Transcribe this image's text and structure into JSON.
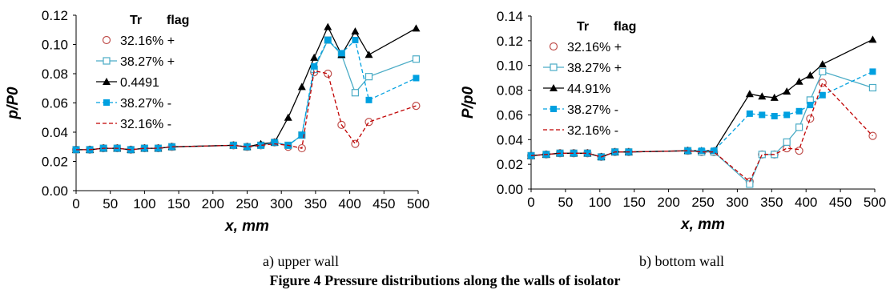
{
  "captions": {
    "panel_a": "a) upper wall",
    "panel_b": "b) bottom wall",
    "figure": "Figure 4 Pressure distributions along the walls of isolator"
  },
  "chart_data": [
    {
      "type": "line",
      "xlabel": "x, mm",
      "ylabel": "p/P0",
      "xlim": [
        0,
        500
      ],
      "ylim": [
        0,
        0.12
      ],
      "xticks": [
        0,
        50,
        100,
        150,
        200,
        250,
        300,
        350,
        400,
        450,
        500
      ],
      "yticks": [
        "0.00",
        "0.02",
        "0.04",
        "0.06",
        "0.08",
        "0.10",
        "0.12"
      ],
      "grid": false,
      "legend": {
        "position": "top-left",
        "header": [
          "Tr",
          "flag"
        ]
      },
      "series": [
        {
          "name": "32.16% +",
          "color": "#c0504d",
          "marker": "circle-open",
          "line": "none",
          "x": [
            0,
            20,
            40,
            60,
            80,
            100,
            120,
            140,
            230,
            250,
            270,
            290,
            310,
            330,
            348,
            368,
            388,
            408,
            428,
            497
          ],
          "y": [
            0.028,
            0.028,
            0.029,
            0.029,
            0.028,
            0.029,
            0.029,
            0.03,
            0.031,
            0.03,
            0.031,
            0.033,
            0.03,
            0.029,
            0.081,
            0.08,
            0.045,
            0.032,
            0.047,
            0.058
          ]
        },
        {
          "name": "38.27% +",
          "color": "#4bacc6",
          "marker": "square-open",
          "line": "solid",
          "x": [
            0,
            20,
            40,
            60,
            80,
            100,
            120,
            140,
            230,
            250,
            270,
            290,
            310,
            330,
            348,
            368,
            388,
            408,
            428,
            497
          ],
          "y": [
            0.028,
            0.028,
            0.029,
            0.029,
            0.028,
            0.029,
            0.029,
            0.03,
            0.031,
            0.03,
            0.031,
            0.033,
            0.031,
            0.038,
            0.083,
            0.103,
            0.093,
            0.067,
            0.078,
            0.09
          ]
        },
        {
          "name": "0.4491",
          "color": "#000000",
          "marker": "triangle-filled",
          "line": "solid",
          "x": [
            0,
            20,
            40,
            60,
            80,
            100,
            120,
            140,
            230,
            250,
            270,
            290,
            310,
            330,
            348,
            368,
            388,
            408,
            428,
            497
          ],
          "y": [
            0.028,
            0.028,
            0.029,
            0.029,
            0.028,
            0.029,
            0.029,
            0.03,
            0.031,
            0.03,
            0.032,
            0.033,
            0.05,
            0.071,
            0.091,
            0.112,
            0.093,
            0.109,
            0.093,
            0.111
          ]
        },
        {
          "name": "38.27% -",
          "color": "#00a0e0",
          "marker": "square-filled",
          "line": "dashed",
          "x": [
            0,
            20,
            40,
            60,
            80,
            100,
            120,
            140,
            230,
            250,
            270,
            290,
            310,
            330,
            348,
            368,
            388,
            408,
            428,
            497
          ],
          "y": [
            0.028,
            0.028,
            0.029,
            0.029,
            0.028,
            0.029,
            0.029,
            0.03,
            0.031,
            0.03,
            0.031,
            0.033,
            0.031,
            0.038,
            0.085,
            0.103,
            0.094,
            0.103,
            0.062,
            0.077
          ]
        },
        {
          "name": "32.16% -",
          "color": "#c00000",
          "marker": "none",
          "line": "dashed",
          "x": [
            0,
            20,
            40,
            60,
            80,
            100,
            120,
            140,
            230,
            250,
            270,
            290,
            310,
            330,
            348,
            368,
            388,
            408,
            428,
            497
          ],
          "y": [
            0.028,
            0.028,
            0.029,
            0.029,
            0.028,
            0.029,
            0.029,
            0.03,
            0.031,
            0.03,
            0.031,
            0.032,
            0.031,
            0.029,
            0.082,
            0.08,
            0.045,
            0.032,
            0.047,
            0.058
          ]
        }
      ]
    },
    {
      "type": "line",
      "xlabel": "x, mm",
      "ylabel": "P/p0",
      "xlim": [
        0,
        500
      ],
      "ylim": [
        0,
        0.14
      ],
      "xticks": [
        0,
        50,
        100,
        150,
        200,
        250,
        300,
        350,
        400,
        450,
        500
      ],
      "yticks": [
        "0.00",
        "0.02",
        "0.04",
        "0.06",
        "0.08",
        "0.10",
        "0.12",
        "0.14"
      ],
      "grid": false,
      "legend": {
        "position": "top-left",
        "header": [
          "Tr",
          "flag"
        ]
      },
      "series": [
        {
          "name": "32.16% +",
          "color": "#c0504d",
          "marker": "circle-open",
          "line": "none",
          "x": [
            0,
            22,
            42,
            62,
            82,
            102,
            122,
            142,
            228,
            248,
            266,
            318,
            336,
            354,
            372,
            390,
            406,
            424,
            497
          ],
          "y": [
            0.027,
            0.028,
            0.029,
            0.029,
            0.029,
            0.026,
            0.03,
            0.03,
            0.031,
            0.03,
            0.03,
            0.006,
            0.028,
            0.028,
            0.033,
            0.031,
            0.057,
            0.086,
            0.043
          ]
        },
        {
          "name": "38.27% +",
          "color": "#4bacc6",
          "marker": "square-open",
          "line": "solid",
          "x": [
            0,
            22,
            42,
            62,
            82,
            102,
            122,
            142,
            228,
            248,
            266,
            318,
            336,
            354,
            372,
            390,
            406,
            424,
            497
          ],
          "y": [
            0.027,
            0.028,
            0.029,
            0.029,
            0.029,
            0.026,
            0.03,
            0.03,
            0.031,
            0.03,
            0.03,
            0.004,
            0.028,
            0.028,
            0.038,
            0.05,
            0.072,
            0.095,
            0.082
          ]
        },
        {
          "name": "44.91%",
          "color": "#000000",
          "marker": "triangle-filled",
          "line": "solid",
          "x": [
            0,
            22,
            42,
            62,
            82,
            102,
            122,
            142,
            228,
            248,
            266,
            318,
            336,
            354,
            372,
            390,
            406,
            424,
            497
          ],
          "y": [
            0.027,
            0.028,
            0.029,
            0.029,
            0.029,
            0.026,
            0.03,
            0.03,
            0.031,
            0.031,
            0.031,
            0.077,
            0.075,
            0.074,
            0.079,
            0.087,
            0.092,
            0.101,
            0.121
          ]
        },
        {
          "name": "38.27% -",
          "color": "#00a0e0",
          "marker": "square-filled",
          "line": "dashed",
          "x": [
            0,
            22,
            42,
            62,
            82,
            102,
            122,
            142,
            228,
            248,
            266,
            318,
            336,
            354,
            372,
            390,
            406,
            424,
            497
          ],
          "y": [
            0.027,
            0.028,
            0.029,
            0.029,
            0.029,
            0.026,
            0.03,
            0.03,
            0.031,
            0.031,
            0.031,
            0.061,
            0.06,
            0.059,
            0.06,
            0.063,
            0.068,
            0.076,
            0.095
          ]
        },
        {
          "name": "32.16% -",
          "color": "#c00000",
          "marker": "none",
          "line": "dashed",
          "x": [
            0,
            22,
            42,
            62,
            82,
            102,
            122,
            142,
            228,
            248,
            266,
            318,
            336,
            354,
            372,
            390,
            406,
            424,
            497
          ],
          "y": [
            0.027,
            0.028,
            0.029,
            0.029,
            0.029,
            0.026,
            0.03,
            0.03,
            0.031,
            0.03,
            0.03,
            0.006,
            0.028,
            0.028,
            0.033,
            0.032,
            0.057,
            0.086,
            0.043
          ]
        }
      ]
    }
  ]
}
